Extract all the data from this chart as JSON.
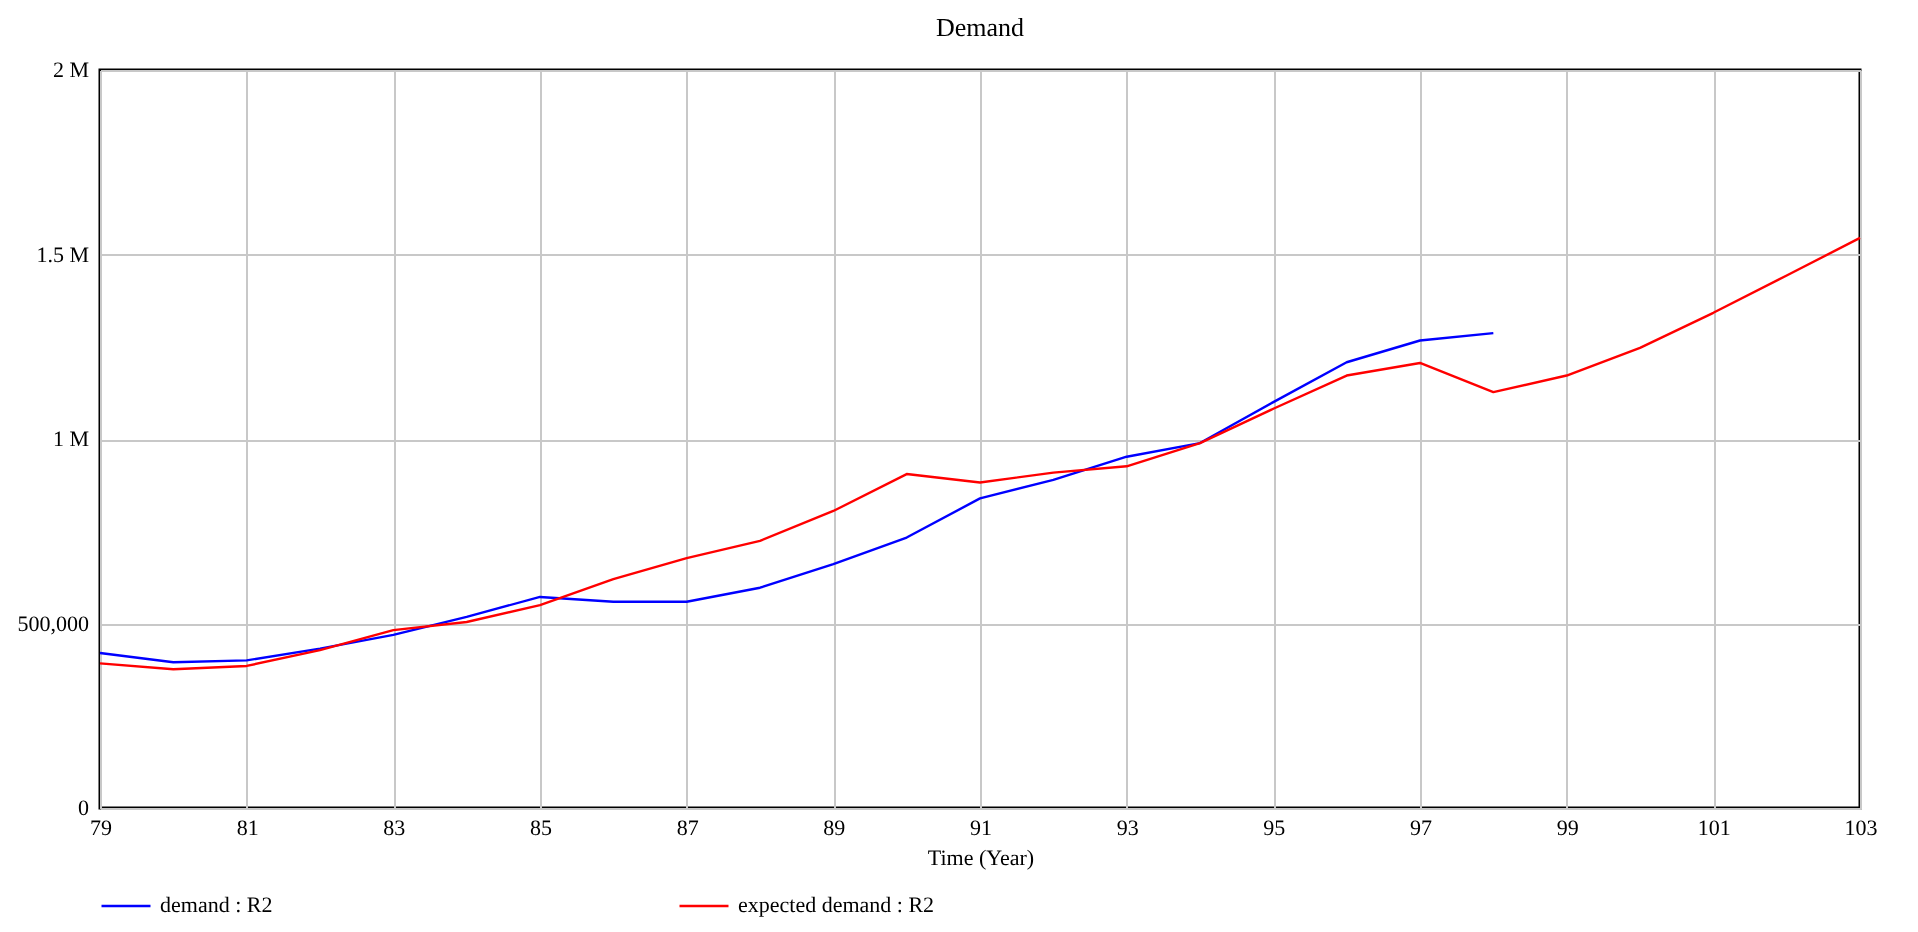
{
  "chart_data": {
    "type": "line",
    "title": "Demand",
    "xlabel": "Time (Year)",
    "xlim": [
      79,
      103
    ],
    "xticks": [
      79,
      81,
      83,
      85,
      87,
      89,
      91,
      93,
      95,
      97,
      99,
      101,
      103
    ],
    "ylim": [
      0,
      2000000
    ],
    "yticks": [
      {
        "value": 0,
        "label": "0"
      },
      {
        "value": 500000,
        "label": "500,000"
      },
      {
        "value": 1000000,
        "label": "1 M"
      },
      {
        "value": 1500000,
        "label": "1.5 M"
      },
      {
        "value": 2000000,
        "label": "2 M"
      }
    ],
    "grid": true,
    "legend": "bottom",
    "marker": "none",
    "line_style": "solid",
    "series": [
      {
        "name": "demand : R2",
        "color": "#0000ff",
        "x": [
          79,
          80,
          81,
          82,
          83,
          84,
          85,
          86,
          87,
          88,
          89,
          90,
          91,
          92,
          93,
          94,
          95,
          96,
          97,
          98
        ],
        "values": [
          420000,
          395000,
          400000,
          432000,
          469000,
          518000,
          572000,
          559000,
          559000,
          597000,
          661000,
          733000,
          839000,
          889000,
          952000,
          989000,
          1100000,
          1208000,
          1267000,
          1287000
        ]
      },
      {
        "name": "expected demand : R2",
        "color": "#ff0000",
        "x": [
          79,
          80,
          81,
          82,
          83,
          84,
          85,
          86,
          87,
          88,
          89,
          90,
          91,
          92,
          93,
          94,
          95,
          96,
          97,
          98,
          99,
          100,
          101,
          102,
          103
        ],
        "values": [
          392000,
          376000,
          385000,
          428000,
          482000,
          504000,
          550000,
          620000,
          677000,
          724000,
          805000,
          905000,
          882000,
          909000,
          926000,
          989000,
          1082000,
          1172000,
          1206000,
          1127000,
          1172000,
          1247000,
          1342000,
          1443000,
          1545000
        ]
      }
    ]
  }
}
